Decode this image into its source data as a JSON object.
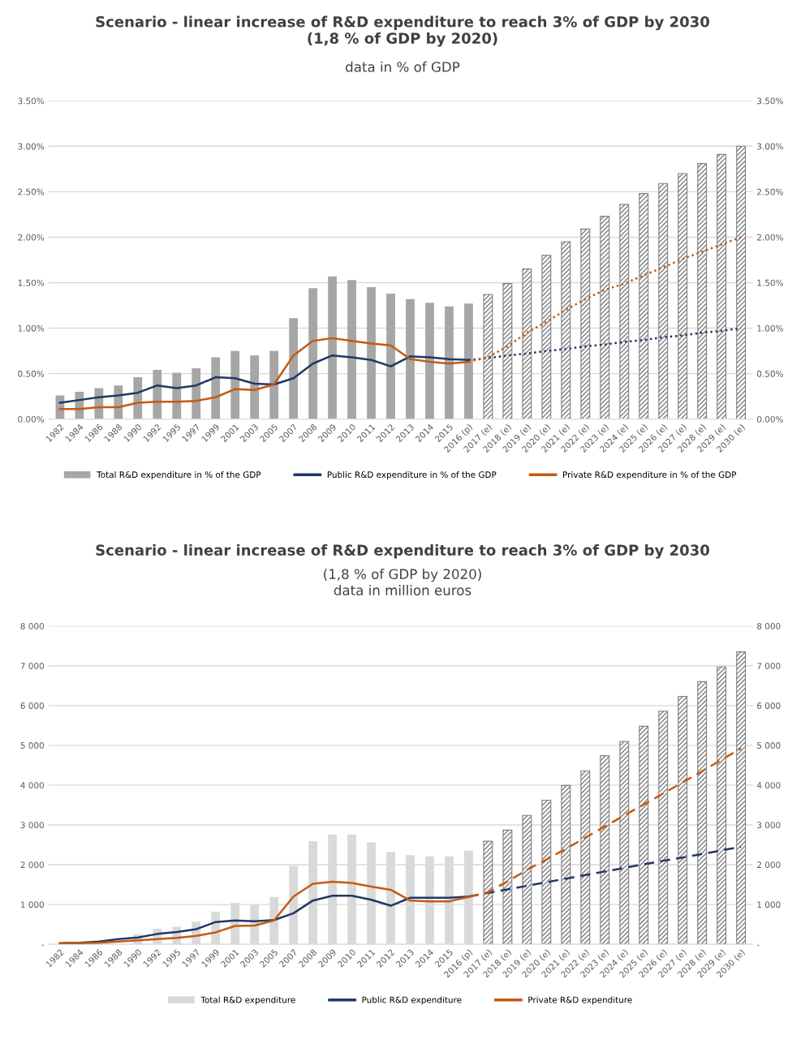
{
  "chart_data": [
    {
      "type": "bar",
      "title": "Scenario - linear increase of R&D expenditure to reach 3% of GDP by 2030\n(1,8 % of GDP by 2020)",
      "subtitle": "data in % of GDP",
      "categories": [
        "1982",
        "1984",
        "1986",
        "1988",
        "1990",
        "1992",
        "1995",
        "1997",
        "1999",
        "2001",
        "2003",
        "2005",
        "2007",
        "2008",
        "2009",
        "2010",
        "2011",
        "2012",
        "2013",
        "2014",
        "2015",
        "2016 (p)",
        "2017 (e)",
        "2018 (e)",
        "2019 (e)",
        "2020 (e)",
        "2021 (e)",
        "2022 (e)",
        "2023 (e)",
        "2024 (e)",
        "2025 (e)",
        "2026 (e)",
        "2027 (e)",
        "2028 (e)",
        "2029 (e)",
        "2030 (e)"
      ],
      "series": [
        {
          "name": "Total R&D expenditure in % of the GDP",
          "color": "#a6a6a6",
          "values": [
            0.26,
            0.3,
            0.34,
            0.37,
            0.46,
            0.54,
            0.51,
            0.56,
            0.68,
            0.75,
            0.7,
            0.75,
            1.11,
            1.44,
            1.57,
            1.53,
            1.45,
            1.38,
            1.32,
            1.28,
            1.24,
            1.27,
            null,
            null,
            null,
            null,
            null,
            null,
            null,
            null,
            null,
            null,
            null,
            null,
            null,
            null
          ]
        },
        {
          "color": "#7f7f7f",
          "values": [
            null,
            null,
            null,
            null,
            null,
            null,
            null,
            null,
            null,
            null,
            null,
            null,
            null,
            null,
            null,
            null,
            null,
            null,
            null,
            null,
            null,
            null,
            1.37,
            1.49,
            1.65,
            1.8,
            1.95,
            2.09,
            2.23,
            2.36,
            2.48,
            2.59,
            2.7,
            2.81,
            2.91,
            3.0
          ]
        },
        {
          "name": "Public R&D expenditure in % of the GDP",
          "type": "line",
          "color": "#203864",
          "line_style": "solid",
          "values": [
            0.18,
            0.21,
            0.24,
            0.26,
            0.29,
            0.37,
            0.34,
            0.37,
            0.46,
            0.45,
            0.39,
            0.38,
            0.45,
            0.61,
            0.7,
            0.68,
            0.65,
            0.58,
            0.69,
            0.68,
            0.66,
            0.65,
            null,
            null,
            null,
            null,
            null,
            null,
            null,
            null,
            null,
            null,
            null,
            null,
            null,
            null
          ]
        },
        {
          "name": "Private R&D expenditure in % of the GDP",
          "type": "line",
          "color": "#c55a11",
          "line_style": "solid",
          "values": [
            0.11,
            0.11,
            0.13,
            0.13,
            0.18,
            0.19,
            0.19,
            0.2,
            0.24,
            0.33,
            0.32,
            0.38,
            0.7,
            0.86,
            0.89,
            0.86,
            0.83,
            0.81,
            0.66,
            0.63,
            0.61,
            0.63,
            null,
            null,
            null,
            null,
            null,
            null,
            null,
            null,
            null,
            null,
            null,
            null,
            null,
            null
          ]
        },
        {
          "type": "line",
          "color": "#203864",
          "line_style": "dotted",
          "values": [
            null,
            null,
            null,
            null,
            null,
            null,
            null,
            null,
            null,
            null,
            null,
            null,
            null,
            null,
            null,
            null,
            null,
            null,
            null,
            null,
            null,
            0.65,
            0.67,
            0.7,
            0.72,
            0.75,
            0.77,
            0.8,
            0.82,
            0.85,
            0.87,
            0.9,
            0.92,
            0.95,
            0.97,
            1.0
          ]
        },
        {
          "type": "line",
          "color": "#c55a11",
          "line_style": "dotted",
          "values": [
            null,
            null,
            null,
            null,
            null,
            null,
            null,
            null,
            null,
            null,
            null,
            null,
            null,
            null,
            null,
            null,
            null,
            null,
            null,
            null,
            null,
            0.63,
            0.68,
            0.8,
            0.95,
            1.07,
            1.2,
            1.32,
            1.42,
            1.49,
            1.58,
            1.67,
            1.76,
            1.84,
            1.92,
            2.0
          ]
        }
      ],
      "ylim": [
        0,
        3.5
      ],
      "yticks": [
        {
          "value": 0,
          "label": "0.00%"
        },
        {
          "value": 0.5,
          "label": "0.50%"
        },
        {
          "value": 1,
          "label": "1.00%"
        },
        {
          "value": 1.5,
          "label": "1.50%"
        },
        {
          "value": 2,
          "label": "2.00%"
        },
        {
          "value": 2.5,
          "label": "2.50%"
        },
        {
          "value": 3,
          "label": "3.00%"
        },
        {
          "value": 3.5,
          "label": "3.50%"
        }
      ],
      "y2lim": [
        0,
        3.5
      ],
      "y2ticks": [
        {
          "value": 0,
          "label": "0.00%"
        },
        {
          "value": 0.5,
          "label": "0.50%"
        },
        {
          "value": 1,
          "label": "1.00%"
        },
        {
          "value": 1.5,
          "label": "1.50%"
        },
        {
          "value": 2,
          "label": "2.00%"
        },
        {
          "value": 2.5,
          "label": "2.50%"
        },
        {
          "value": 3,
          "label": "3.00%"
        },
        {
          "value": 3.5,
          "label": "3.50%"
        }
      ],
      "grid": "y",
      "legend": "bottom"
    },
    {
      "type": "bar",
      "title": "Scenario - linear increase of R&D expenditure to reach 3% of GDP by 2030",
      "subtitle": "(1,8 % of GDP by 2020)\ndata in million euros",
      "categories": [
        "1982",
        "1984",
        "1986",
        "1988",
        "1990",
        "1992",
        "1995",
        "1997",
        "1999",
        "2001",
        "2003",
        "2005",
        "2007",
        "2008",
        "2009",
        "2010",
        "2011",
        "2012",
        "2013",
        "2014",
        "2015",
        "2016 (p)",
        "2017 (e)",
        "2018 (e)",
        "2019 (e)",
        "2020 (e)",
        "2021 (e)",
        "2022 (e)",
        "2023 (e)",
        "2024 (e)",
        "2025 (e)",
        "2026 (e)",
        "2027 (e)",
        "2028 (e)",
        "2029 (e)",
        "2030 (e)"
      ],
      "series": [
        {
          "name": "Total R&D expenditure",
          "color": "#d9d9d9",
          "values": [
            null,
            null,
            null,
            null,
            250,
            390,
            440,
            570,
            820,
            1040,
            1000,
            1190,
            1970,
            2590,
            2760,
            2760,
            2560,
            2320,
            2240,
            2210,
            2210,
            2350,
            null,
            null,
            null,
            null,
            null,
            null,
            null,
            null,
            null,
            null,
            null,
            null,
            null,
            null
          ]
        },
        {
          "color": "#7f7f7f",
          "values": [
            null,
            null,
            null,
            null,
            null,
            null,
            null,
            null,
            null,
            null,
            null,
            null,
            null,
            null,
            null,
            null,
            null,
            null,
            null,
            null,
            null,
            null,
            2590,
            2870,
            3240,
            3620,
            3990,
            4360,
            4740,
            5100,
            5480,
            5860,
            6230,
            6600,
            6970,
            7350
          ]
        },
        {
          "name": "Public R&D expenditure",
          "type": "line",
          "color": "#203864",
          "line_style": "solid",
          "values": [
            30,
            40,
            70,
            130,
            170,
            260,
            310,
            380,
            560,
            600,
            580,
            610,
            780,
            1100,
            1220,
            1220,
            1120,
            970,
            1170,
            1170,
            1170,
            1200,
            null,
            null,
            null,
            null,
            null,
            null,
            null,
            null,
            null,
            null,
            null,
            null,
            null,
            null
          ]
        },
        {
          "name": "Private R&D expenditure",
          "type": "line",
          "color": "#c55a11",
          "line_style": "solid",
          "values": [
            20,
            30,
            40,
            70,
            100,
            130,
            160,
            210,
            300,
            460,
            470,
            600,
            1200,
            1520,
            1570,
            1540,
            1450,
            1370,
            1100,
            1080,
            1080,
            1190,
            null,
            null,
            null,
            null,
            null,
            null,
            null,
            null,
            null,
            null,
            null,
            null,
            null,
            null
          ]
        },
        {
          "type": "line",
          "color": "#203864",
          "line_style": "dashed",
          "values": [
            null,
            null,
            null,
            null,
            null,
            null,
            null,
            null,
            null,
            null,
            null,
            null,
            null,
            null,
            null,
            null,
            null,
            null,
            null,
            null,
            null,
            1200,
            1290,
            1380,
            1470,
            1560,
            1650,
            1740,
            1830,
            1920,
            2010,
            2100,
            2180,
            2270,
            2360,
            2450
          ]
        },
        {
          "type": "line",
          "color": "#c55a11",
          "line_style": "dashed",
          "values": [
            null,
            null,
            null,
            null,
            null,
            null,
            null,
            null,
            null,
            null,
            null,
            null,
            null,
            null,
            null,
            null,
            null,
            null,
            null,
            null,
            null,
            1190,
            1310,
            1580,
            1870,
            2130,
            2400,
            2680,
            2960,
            3240,
            3510,
            3790,
            4070,
            4350,
            4640,
            4920
          ]
        }
      ],
      "ylim": [
        0,
        8000
      ],
      "yticks": [
        {
          "value": 0,
          "label": "-"
        },
        {
          "value": 1000,
          "label": "1 000"
        },
        {
          "value": 2000,
          "label": "2 000"
        },
        {
          "value": 3000,
          "label": "3 000"
        },
        {
          "value": 4000,
          "label": "4 000"
        },
        {
          "value": 5000,
          "label": "5 000"
        },
        {
          "value": 6000,
          "label": "6 000"
        },
        {
          "value": 7000,
          "label": "7 000"
        },
        {
          "value": 8000,
          "label": "8 000"
        }
      ],
      "y2lim": [
        0,
        8000
      ],
      "y2ticks": [
        {
          "value": 0,
          "label": "-"
        },
        {
          "value": 1000,
          "label": "1 000"
        },
        {
          "value": 2000,
          "label": "2 000"
        },
        {
          "value": 3000,
          "label": "3 000"
        },
        {
          "value": 4000,
          "label": "4 000"
        },
        {
          "value": 5000,
          "label": "5 000"
        },
        {
          "value": 6000,
          "label": "6 000"
        },
        {
          "value": 7000,
          "label": "7 000"
        },
        {
          "value": 8000,
          "label": "8 000"
        }
      ],
      "grid": "y",
      "legend": "bottom"
    }
  ]
}
